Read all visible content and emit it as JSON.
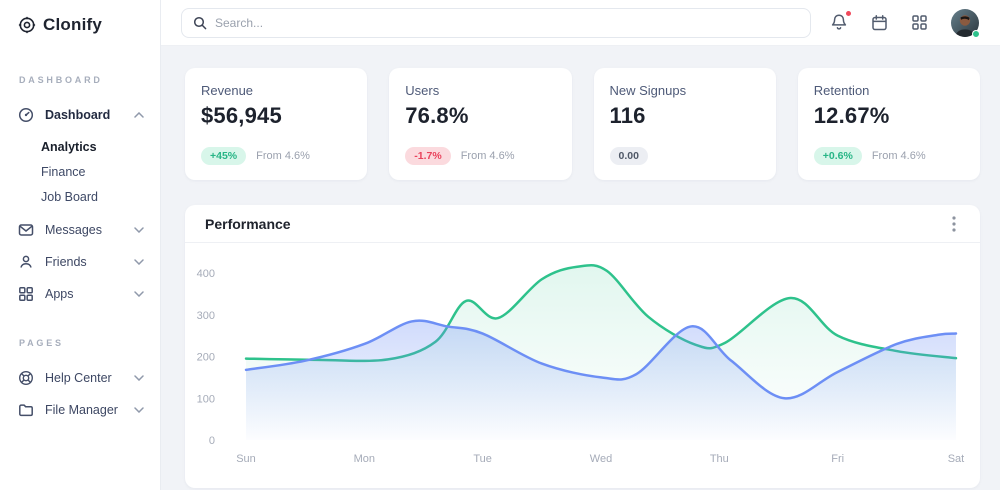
{
  "sidebar": {
    "logo": "Clonify",
    "sections": [
      {
        "label": "DASHBOARD",
        "items": [
          {
            "label": "Dashboard",
            "icon": "gauge-icon",
            "expanded": true,
            "children": [
              "Analytics",
              "Finance",
              "Job Board"
            ],
            "active_child": "Analytics"
          },
          {
            "label": "Messages",
            "icon": "mail-icon"
          },
          {
            "label": "Friends",
            "icon": "user-icon"
          },
          {
            "label": "Apps",
            "icon": "apps-icon"
          }
        ]
      },
      {
        "label": "PAGES",
        "items": [
          {
            "label": "Help Center",
            "icon": "lifebuoy-icon"
          },
          {
            "label": "File Manager",
            "icon": "folder-icon"
          }
        ]
      }
    ]
  },
  "topbar": {
    "search_placeholder": "Search...",
    "icons": [
      "bell-icon",
      "calendar-icon",
      "apps-grid-icon",
      "avatar"
    ],
    "has_notification": true,
    "status_online": true
  },
  "stats": [
    {
      "title": "Revenue",
      "value": "$56,945",
      "badge": "+45%",
      "badge_type": "success",
      "note": "From 4.6%"
    },
    {
      "title": "Users",
      "value": "76.8%",
      "badge": "-1.7%",
      "badge_type": "danger",
      "note": "From 4.6%"
    },
    {
      "title": "New Signups",
      "value": "116",
      "badge": "0.00",
      "badge_type": "neutral",
      "note": ""
    },
    {
      "title": "Retention",
      "value": "12.67%",
      "badge": "+0.6%",
      "badge_type": "success",
      "note": "From 4.6%"
    }
  ],
  "panel": {
    "title": "Performance"
  },
  "colors": {
    "green_line": "#2ec28c",
    "blue_line": "#6d8ff5",
    "badge_green_bg": "#d8f6ea",
    "badge_red_bg": "#fbdade",
    "page_bg": "#f1f3f7",
    "notification_red": "#f0485a"
  },
  "chart_data": {
    "type": "area",
    "title": "Performance",
    "x_categories": [
      "Sun",
      "Mon",
      "Tue",
      "Wed",
      "Thu",
      "Fri",
      "Sat"
    ],
    "y_ticks": [
      0,
      100,
      200,
      300,
      400
    ],
    "ylim": [
      0,
      420
    ],
    "grid": false,
    "legend": "none",
    "series": [
      {
        "name": "green",
        "color": "#2ec28c",
        "fill_from": "rgba(46,194,140,0.14)",
        "fill_to": "rgba(46,194,140,0)",
        "points": [
          [
            0,
            195
          ],
          [
            0.6,
            192
          ],
          [
            1.2,
            193
          ],
          [
            1.6,
            235
          ],
          [
            1.86,
            333
          ],
          [
            2.13,
            292
          ],
          [
            2.5,
            385
          ],
          [
            2.8,
            415
          ],
          [
            3.05,
            405
          ],
          [
            3.4,
            295
          ],
          [
            3.8,
            228
          ],
          [
            4.05,
            233
          ],
          [
            4.6,
            340
          ],
          [
            5.0,
            250
          ],
          [
            5.5,
            213
          ],
          [
            6,
            196
          ]
        ]
      },
      {
        "name": "blue",
        "color": "#6d8ff5",
        "fill_from": "rgba(109,143,245,0.32)",
        "fill_to": "rgba(109,143,245,0.02)",
        "points": [
          [
            0,
            168
          ],
          [
            0.5,
            190
          ],
          [
            1.0,
            230
          ],
          [
            1.4,
            284
          ],
          [
            1.7,
            272
          ],
          [
            2.0,
            255
          ],
          [
            2.5,
            183
          ],
          [
            3.0,
            150
          ],
          [
            3.3,
            158
          ],
          [
            3.76,
            272
          ],
          [
            4.1,
            190
          ],
          [
            4.55,
            100
          ],
          [
            5.0,
            163
          ],
          [
            5.5,
            230
          ],
          [
            5.85,
            252
          ],
          [
            6,
            255
          ]
        ]
      }
    ]
  }
}
